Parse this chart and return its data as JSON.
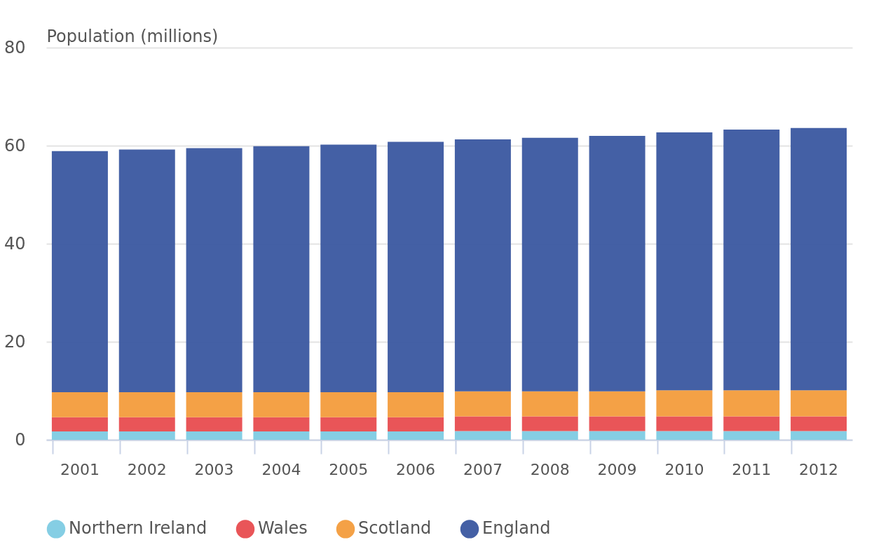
{
  "chart_data": {
    "type": "bar",
    "stacked": true,
    "ylabel": "Population (millions)",
    "categories": [
      "2001",
      "2002",
      "2003",
      "2004",
      "2005",
      "2006",
      "2007",
      "2008",
      "2009",
      "2010",
      "2011",
      "2012"
    ],
    "series": [
      {
        "name": "Northern Ireland",
        "color": "#7ecbe3",
        "values": [
          1.7,
          1.7,
          1.7,
          1.7,
          1.7,
          1.7,
          1.8,
          1.8,
          1.8,
          1.8,
          1.8,
          1.8
        ]
      },
      {
        "name": "Wales",
        "color": "#e84c4f",
        "values": [
          2.9,
          2.9,
          2.9,
          2.9,
          2.9,
          2.9,
          3.0,
          3.0,
          3.0,
          3.0,
          3.0,
          3.0
        ]
      },
      {
        "name": "Scotland",
        "color": "#f39c3c",
        "values": [
          5.1,
          5.1,
          5.1,
          5.1,
          5.1,
          5.1,
          5.1,
          5.1,
          5.1,
          5.3,
          5.3,
          5.3
        ]
      },
      {
        "name": "England",
        "color": "#3a57a0",
        "values": [
          49.2,
          49.5,
          49.8,
          50.2,
          50.5,
          51.1,
          51.4,
          51.7,
          52.1,
          52.6,
          53.2,
          53.5
        ]
      }
    ],
    "ylim": [
      0,
      80
    ],
    "yticks": [
      0,
      20,
      40,
      60,
      80
    ],
    "grid": "y",
    "legend": "bottom"
  }
}
